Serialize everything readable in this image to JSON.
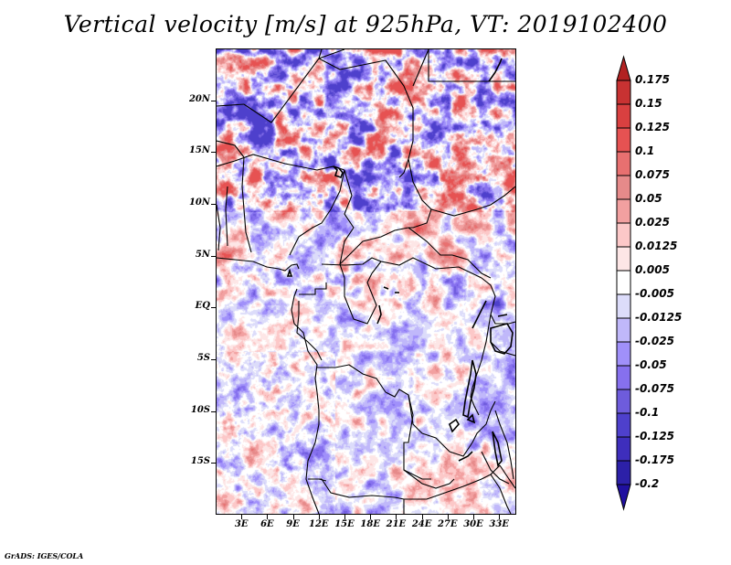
{
  "title": "Vertical velocity [m/s] at 925hPa, VT: 2019102400",
  "credit": "GrADS: IGES/COLA",
  "chart_data": {
    "type": "heatmap",
    "title": "Vertical velocity [m/s] at 925hPa, VT: 2019102400",
    "variable": "Vertical velocity",
    "units": "m/s",
    "level": "925hPa",
    "valid_time": "2019102400",
    "xlabel": "",
    "ylabel": "",
    "lon_range": [
      0,
      35
    ],
    "lat_range": [
      -20,
      25
    ],
    "x_ticks": [
      "3E",
      "6E",
      "9E",
      "12E",
      "15E",
      "18E",
      "21E",
      "24E",
      "27E",
      "30E",
      "33E"
    ],
    "x_tick_values": [
      3,
      6,
      9,
      12,
      15,
      18,
      21,
      24,
      27,
      30,
      33
    ],
    "y_ticks": [
      "20N",
      "15N",
      "10N",
      "5N",
      "EQ",
      "5S",
      "10S",
      "15S"
    ],
    "y_tick_values": [
      20,
      15,
      10,
      5,
      0,
      -5,
      -10,
      -15
    ],
    "grid": false,
    "legend_placement": "right",
    "colorbar": {
      "labels": [
        "0.175",
        "0.15",
        "0.125",
        "0.1",
        "0.075",
        "0.05",
        "0.025",
        "0.0125",
        "0.005",
        "-0.005",
        "-0.0125",
        "-0.025",
        "-0.05",
        "-0.075",
        "-0.1",
        "-0.125",
        "-0.175",
        "-0.2"
      ],
      "levels": [
        0.175,
        0.15,
        0.125,
        0.1,
        0.075,
        0.05,
        0.025,
        0.0125,
        0.005,
        -0.005,
        -0.0125,
        -0.025,
        -0.05,
        -0.075,
        -0.1,
        -0.125,
        -0.175,
        -0.2
      ],
      "colors": [
        "#b22222",
        "#c83232",
        "#d94040",
        "#e65252",
        "#e87070",
        "#e68a8a",
        "#f2a0a0",
        "#fcc8c8",
        "#fde6e6",
        "#ffffff",
        "#dcdcfa",
        "#c0b8fa",
        "#a090fa",
        "#8670ee",
        "#6e5cdc",
        "#4e40cc",
        "#3e2ebc",
        "#2c20a8",
        "#2010a0"
      ],
      "top_arrow_color": "#b22222",
      "bottom_arrow_color": "#2010a0"
    }
  }
}
